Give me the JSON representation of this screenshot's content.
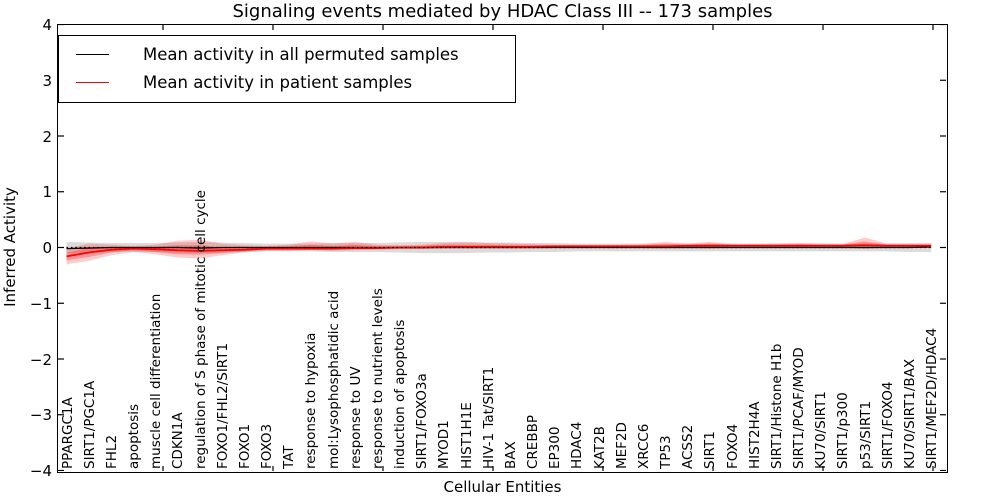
{
  "figure": {
    "title": "Signaling events mediated by HDAC Class III -- 173 samples",
    "xlabel": "Cellular Entities",
    "ylabel": "Inferred Activity"
  },
  "legend": {
    "items": [
      {
        "label": "Mean activity in all permuted samples",
        "color": "#000000"
      },
      {
        "label": "Mean activity in patient samples",
        "color": "#ff0000"
      }
    ]
  },
  "chart_data": {
    "type": "line",
    "title": "Signaling events mediated by HDAC Class III -- 173 samples",
    "xlabel": "Cellular Entities",
    "ylabel": "Inferred Activity",
    "ylim": [
      -4,
      4
    ],
    "yticks": [
      4,
      3,
      2,
      1,
      0,
      -1,
      -2,
      -3,
      -4
    ],
    "ytick_labels": [
      "4",
      "3",
      "2",
      "1",
      "0",
      "−1",
      "−2",
      "−3",
      "−4"
    ],
    "grid": false,
    "legend_position": "upper left",
    "zero_line": {
      "style": "dotted",
      "color": "#000000",
      "y": 0
    },
    "categories": [
      "PPARGC1A",
      "SIRT1/PGC1A",
      "FHL2",
      "apoptosis",
      "muscle cell differentiation",
      "CDKN1A",
      "regulation of S phase of mitotic cell cycle",
      "FOXO1/FHL2/SIRT1",
      "FOXO1",
      "FOXO3",
      "TAT",
      "response to hypoxia",
      "mol:Lysophosphatidic acid",
      "response to UV",
      "response to nutrient levels",
      "induction of apoptosis",
      "SIRT1/FOXO3a",
      "MYOD1",
      "HIST1H1E",
      "HIV-1 Tat/SIRT1",
      "BAX",
      "CREBBP",
      "EP300",
      "HDAC4",
      "KAT2B",
      "MEF2D",
      "XRCC6",
      "TP53",
      "ACSS2",
      "SIRT1",
      "FOXO4",
      "HIST2H4A",
      "SIRT1/Histone H1b",
      "SIRT1/PCAF/MYOD",
      "KU70/SIRT1",
      "SIRT1/p300",
      "p53/SIRT1",
      "SIRT1/FOXO4",
      "KU70/SIRT1/BAX",
      "SIRT1/MEF2D/HDAC4"
    ],
    "series": [
      {
        "name": "Mean activity in all permuted samples",
        "color": "#000000",
        "width": 1.3,
        "values": [
          -0.02,
          -0.01,
          0,
          0,
          0,
          0,
          -0.01,
          0,
          0,
          0,
          0,
          0,
          0,
          0,
          0,
          0,
          0,
          0,
          0,
          0,
          0,
          0,
          0,
          0,
          0,
          0,
          0,
          0,
          0,
          0,
          0,
          0,
          0,
          0,
          0,
          0,
          0,
          0,
          0,
          0.01
        ]
      },
      {
        "name": "Mean activity in patient samples",
        "color": "#ff0000",
        "width": 1.8,
        "values": [
          -0.16,
          -0.09,
          -0.04,
          -0.02,
          -0.03,
          -0.05,
          -0.06,
          -0.05,
          -0.04,
          -0.02,
          -0.02,
          -0.02,
          -0.02,
          -0.01,
          -0.01,
          0,
          0,
          0.01,
          0.01,
          0.01,
          0.01,
          0.01,
          0.02,
          0.02,
          0.02,
          0.02,
          0.02,
          0.02,
          0.03,
          0.03,
          0.03,
          0.03,
          0.03,
          0.03,
          0.03,
          0.03,
          0.04,
          0.03,
          0.03,
          0.03
        ]
      }
    ],
    "bands": [
      {
        "name": "permuted-samples-range",
        "color": "rgba(0,0,0,0.14)",
        "upper": [
          0.1,
          0.09,
          0.08,
          0.08,
          0.08,
          0.09,
          0.1,
          0.09,
          0.08,
          0.07,
          0.07,
          0.07,
          0.08,
          0.08,
          0.08,
          0.09,
          0.1,
          0.1,
          0.1,
          0.09,
          0.09,
          0.08,
          0.08,
          0.07,
          0.07,
          0.07,
          0.07,
          0.07,
          0.07,
          0.07,
          0.07,
          0.07,
          0.07,
          0.07,
          0.07,
          0.07,
          0.07,
          0.07,
          0.08,
          0.08
        ],
        "lower": [
          -0.1,
          -0.09,
          -0.08,
          -0.08,
          -0.08,
          -0.09,
          -0.1,
          -0.09,
          -0.08,
          -0.07,
          -0.07,
          -0.07,
          -0.08,
          -0.08,
          -0.08,
          -0.09,
          -0.1,
          -0.1,
          -0.1,
          -0.09,
          -0.09,
          -0.08,
          -0.08,
          -0.07,
          -0.07,
          -0.07,
          -0.07,
          -0.07,
          -0.07,
          -0.07,
          -0.07,
          -0.07,
          -0.07,
          -0.07,
          -0.07,
          -0.07,
          -0.07,
          -0.07,
          -0.08,
          -0.08
        ]
      },
      {
        "name": "patient-samples-range-outer",
        "color": "rgba(255,0,0,0.20)",
        "upper": [
          -0.02,
          0.07,
          0.05,
          0.03,
          0.05,
          0.12,
          0.14,
          0.07,
          0.04,
          0.03,
          0.05,
          0.11,
          0.07,
          0.1,
          0.05,
          0.04,
          0.05,
          0.08,
          0.09,
          0.08,
          0.07,
          0.06,
          0.05,
          0.05,
          0.05,
          0.05,
          0.06,
          0.1,
          0.07,
          0.1,
          0.06,
          0.06,
          0.07,
          0.08,
          0.07,
          0.06,
          0.18,
          0.07,
          0.06,
          0.06
        ],
        "lower": [
          -0.3,
          -0.24,
          -0.14,
          -0.08,
          -0.12,
          -0.18,
          -0.2,
          -0.14,
          -0.09,
          -0.06,
          -0.06,
          -0.05,
          -0.06,
          -0.05,
          -0.04,
          -0.03,
          -0.03,
          -0.02,
          -0.02,
          -0.02,
          -0.02,
          -0.02,
          -0.01,
          -0.01,
          -0.01,
          -0.01,
          -0.01,
          -0.02,
          -0.01,
          -0.02,
          0,
          0,
          0,
          0,
          0,
          0,
          -0.03,
          0,
          0,
          0
        ]
      },
      {
        "name": "patient-samples-range-inner",
        "color": "rgba(255,0,0,0.28)",
        "upper": [
          -0.09,
          -0.01,
          0.01,
          0.01,
          0.01,
          0.04,
          0.04,
          0.01,
          0.0,
          0.01,
          0.02,
          0.05,
          0.03,
          0.05,
          0.02,
          0.02,
          0.03,
          0.05,
          0.05,
          0.05,
          0.04,
          0.04,
          0.04,
          0.04,
          0.04,
          0.04,
          0.04,
          0.06,
          0.05,
          0.07,
          0.05,
          0.05,
          0.05,
          0.06,
          0.05,
          0.05,
          0.11,
          0.05,
          0.05,
          0.05
        ],
        "lower": [
          -0.23,
          -0.17,
          -0.09,
          -0.05,
          -0.08,
          -0.12,
          -0.13,
          -0.1,
          -0.07,
          -0.04,
          -0.04,
          -0.04,
          -0.04,
          -0.03,
          -0.03,
          -0.02,
          -0.02,
          -0.01,
          -0.01,
          -0.01,
          -0.01,
          -0.01,
          0.01,
          0.01,
          0.01,
          0.01,
          0.01,
          0.0,
          0.01,
          0.01,
          0.02,
          0.02,
          0.02,
          0.02,
          0.02,
          0.02,
          0.01,
          0.02,
          0.02,
          0.02
        ]
      }
    ]
  }
}
